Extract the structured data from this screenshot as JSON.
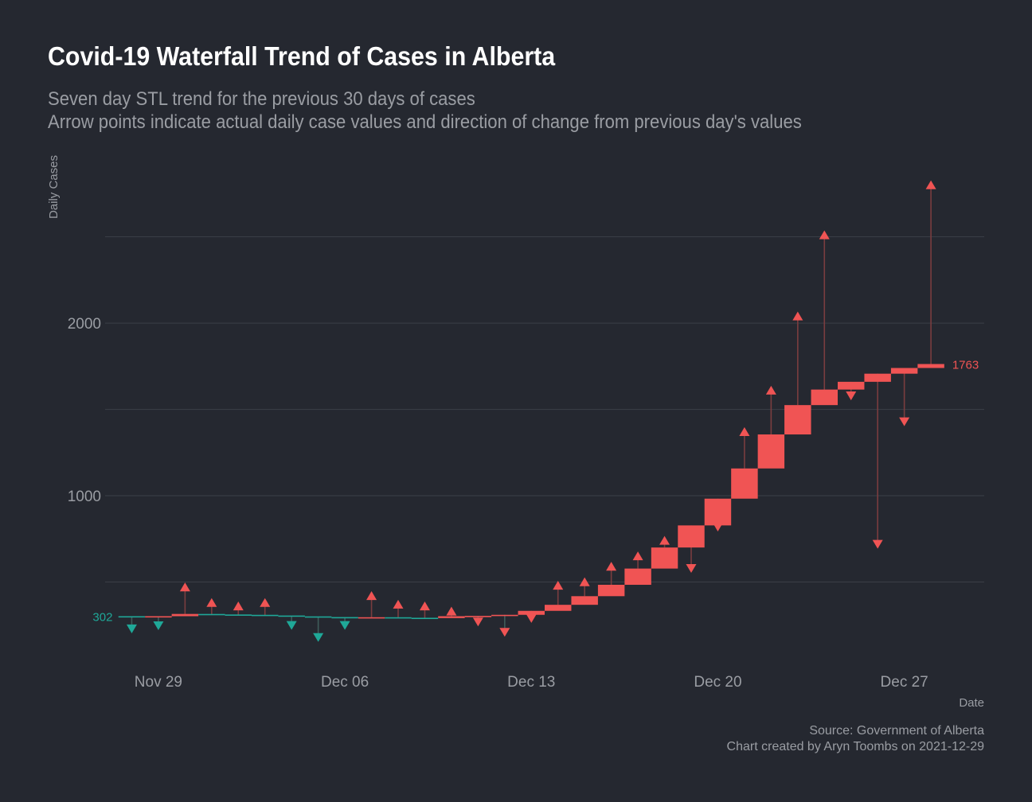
{
  "title": "Covid-19 Waterfall Trend of Cases in Alberta",
  "subtitle_line1": "Seven day STL trend for the previous 30 days of cases",
  "subtitle_line2": "Arrow points indicate actual daily case values and direction of change from previous day's values",
  "caption_line1": "Source: Government of Alberta",
  "caption_line2": "Chart created by Aryn Toombs on 2021-12-29",
  "chart_data": {
    "type": "waterfall",
    "xlabel": "Date",
    "ylabel": "Daily Cases",
    "x_ticks": [
      {
        "date": "2021-11-29",
        "label": "Nov 29"
      },
      {
        "date": "2021-12-06",
        "label": "Dec 06"
      },
      {
        "date": "2021-12-13",
        "label": "Dec 13"
      },
      {
        "date": "2021-12-20",
        "label": "Dec 20"
      },
      {
        "date": "2021-12-27",
        "label": "Dec 27"
      }
    ],
    "y_ticks": [
      1000,
      2000
    ],
    "y_gridlines": [
      500,
      1000,
      1500,
      2000,
      2500
    ],
    "ylim": [
      0,
      2950
    ],
    "xlim": [
      "2021-11-27",
      "2021-12-30"
    ],
    "start_label": "302",
    "end_label": "1763",
    "colors": {
      "increase": "#f05454",
      "decrease": "#1fa898",
      "grid": "#3b3f47",
      "text": "#9a9da3"
    },
    "days": [
      {
        "date": "2021-11-28",
        "trend": 302,
        "actual": 230
      },
      {
        "date": "2021-11-29",
        "trend": 302,
        "actual": 248
      },
      {
        "date": "2021-11-30",
        "trend": 315,
        "actual": 470
      },
      {
        "date": "2021-12-01",
        "trend": 312,
        "actual": 380
      },
      {
        "date": "2021-12-02",
        "trend": 310,
        "actual": 360
      },
      {
        "date": "2021-12-03",
        "trend": 306,
        "actual": 380
      },
      {
        "date": "2021-12-04",
        "trend": 301,
        "actual": 250
      },
      {
        "date": "2021-12-05",
        "trend": 297,
        "actual": 180
      },
      {
        "date": "2021-12-06",
        "trend": 294,
        "actual": 250
      },
      {
        "date": "2021-12-07",
        "trend": 296,
        "actual": 420
      },
      {
        "date": "2021-12-08",
        "trend": 293,
        "actual": 370
      },
      {
        "date": "2021-12-09",
        "trend": 291,
        "actual": 360
      },
      {
        "date": "2021-12-10",
        "trend": 302,
        "actual": 330
      },
      {
        "date": "2021-12-11",
        "trend": 304,
        "actual": 270
      },
      {
        "date": "2021-12-12",
        "trend": 310,
        "actual": 210
      },
      {
        "date": "2021-12-13",
        "trend": 333,
        "actual": 290
      },
      {
        "date": "2021-12-14",
        "trend": 368,
        "actual": 480
      },
      {
        "date": "2021-12-15",
        "trend": 418,
        "actual": 500
      },
      {
        "date": "2021-12-16",
        "trend": 484,
        "actual": 590
      },
      {
        "date": "2021-12-17",
        "trend": 578,
        "actual": 650
      },
      {
        "date": "2021-12-18",
        "trend": 700,
        "actual": 740
      },
      {
        "date": "2021-12-19",
        "trend": 828,
        "actual": 580
      },
      {
        "date": "2021-12-20",
        "trend": 983,
        "actual": 820
      },
      {
        "date": "2021-12-21",
        "trend": 1158,
        "actual": 1370
      },
      {
        "date": "2021-12-22",
        "trend": 1355,
        "actual": 1610
      },
      {
        "date": "2021-12-23",
        "trend": 1525,
        "actual": 2040
      },
      {
        "date": "2021-12-24",
        "trend": 1615,
        "actual": 2510
      },
      {
        "date": "2021-12-25",
        "trend": 1660,
        "actual": 1580
      },
      {
        "date": "2021-12-26",
        "trend": 1707,
        "actual": 720
      },
      {
        "date": "2021-12-27",
        "trend": 1740,
        "actual": 1430
      },
      {
        "date": "2021-12-28",
        "trend": 1763,
        "actual": 2800
      }
    ]
  }
}
